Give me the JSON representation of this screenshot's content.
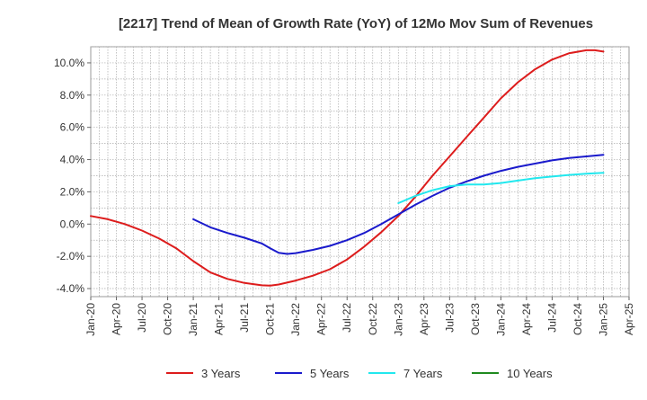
{
  "chart_data": {
    "type": "line",
    "title": "[2217]  Trend of Mean of Growth Rate (YoY) of 12Mo Mov Sum of Revenues",
    "xlabel": "",
    "ylabel": "",
    "ylim": [
      -4.5,
      11.0
    ],
    "y_ticks": [
      -4.0,
      -2.0,
      0.0,
      2.0,
      4.0,
      6.0,
      8.0,
      10.0
    ],
    "y_tick_labels": [
      "-4.0%",
      "-2.0%",
      "0.0%",
      "2.0%",
      "4.0%",
      "6.0%",
      "8.0%",
      "10.0%"
    ],
    "x_tick_labels": [
      "Jan-20",
      "Apr-20",
      "Jul-20",
      "Oct-20",
      "Jan-21",
      "Apr-21",
      "Jul-21",
      "Oct-21",
      "Jan-22",
      "Apr-22",
      "Jul-22",
      "Oct-22",
      "Jan-23",
      "Apr-23",
      "Jul-23",
      "Oct-23",
      "Jan-24",
      "Apr-24",
      "Jul-24",
      "Oct-24",
      "Jan-25",
      "Apr-25"
    ],
    "grid": true,
    "legend_position": "bottom",
    "series": [
      {
        "name": "3 Years",
        "color": "#dd1c1c",
        "points": [
          [
            0,
            0.5
          ],
          [
            2,
            0.3
          ],
          [
            4,
            0.0
          ],
          [
            6,
            -0.4
          ],
          [
            8,
            -0.9
          ],
          [
            10,
            -1.5
          ],
          [
            12,
            -2.3
          ],
          [
            14,
            -3.0
          ],
          [
            16,
            -3.4
          ],
          [
            18,
            -3.65
          ],
          [
            20,
            -3.8
          ],
          [
            21,
            -3.82
          ],
          [
            22,
            -3.75
          ],
          [
            24,
            -3.5
          ],
          [
            26,
            -3.2
          ],
          [
            28,
            -2.8
          ],
          [
            30,
            -2.2
          ],
          [
            32,
            -1.4
          ],
          [
            34,
            -0.5
          ],
          [
            36,
            0.5
          ],
          [
            38,
            1.7
          ],
          [
            40,
            3.0
          ],
          [
            42,
            4.2
          ],
          [
            44,
            5.4
          ],
          [
            46,
            6.6
          ],
          [
            48,
            7.8
          ],
          [
            50,
            8.8
          ],
          [
            52,
            9.6
          ],
          [
            54,
            10.2
          ],
          [
            56,
            10.6
          ],
          [
            58,
            10.78
          ],
          [
            59,
            10.78
          ],
          [
            60,
            10.7
          ]
        ]
      },
      {
        "name": "5 Years",
        "color": "#1a1acc",
        "points": [
          [
            12,
            0.3
          ],
          [
            14,
            -0.2
          ],
          [
            16,
            -0.55
          ],
          [
            18,
            -0.85
          ],
          [
            20,
            -1.2
          ],
          [
            21,
            -1.5
          ],
          [
            22,
            -1.78
          ],
          [
            23,
            -1.85
          ],
          [
            24,
            -1.8
          ],
          [
            26,
            -1.6
          ],
          [
            28,
            -1.35
          ],
          [
            30,
            -1.0
          ],
          [
            32,
            -0.55
          ],
          [
            34,
            0.0
          ],
          [
            36,
            0.6
          ],
          [
            38,
            1.2
          ],
          [
            40,
            1.75
          ],
          [
            42,
            2.25
          ],
          [
            44,
            2.65
          ],
          [
            46,
            3.0
          ],
          [
            48,
            3.3
          ],
          [
            50,
            3.55
          ],
          [
            52,
            3.75
          ],
          [
            54,
            3.95
          ],
          [
            56,
            4.1
          ],
          [
            58,
            4.2
          ],
          [
            60,
            4.3
          ]
        ]
      },
      {
        "name": "7 Years",
        "color": "#22e8ee",
        "points": [
          [
            36,
            1.3
          ],
          [
            38,
            1.75
          ],
          [
            40,
            2.1
          ],
          [
            42,
            2.35
          ],
          [
            44,
            2.45
          ],
          [
            46,
            2.45
          ],
          [
            48,
            2.55
          ],
          [
            50,
            2.7
          ],
          [
            52,
            2.85
          ],
          [
            54,
            2.95
          ],
          [
            56,
            3.05
          ],
          [
            58,
            3.12
          ],
          [
            60,
            3.18
          ]
        ]
      },
      {
        "name": "10 Years",
        "color": "#1f8a1f",
        "points": []
      }
    ]
  }
}
